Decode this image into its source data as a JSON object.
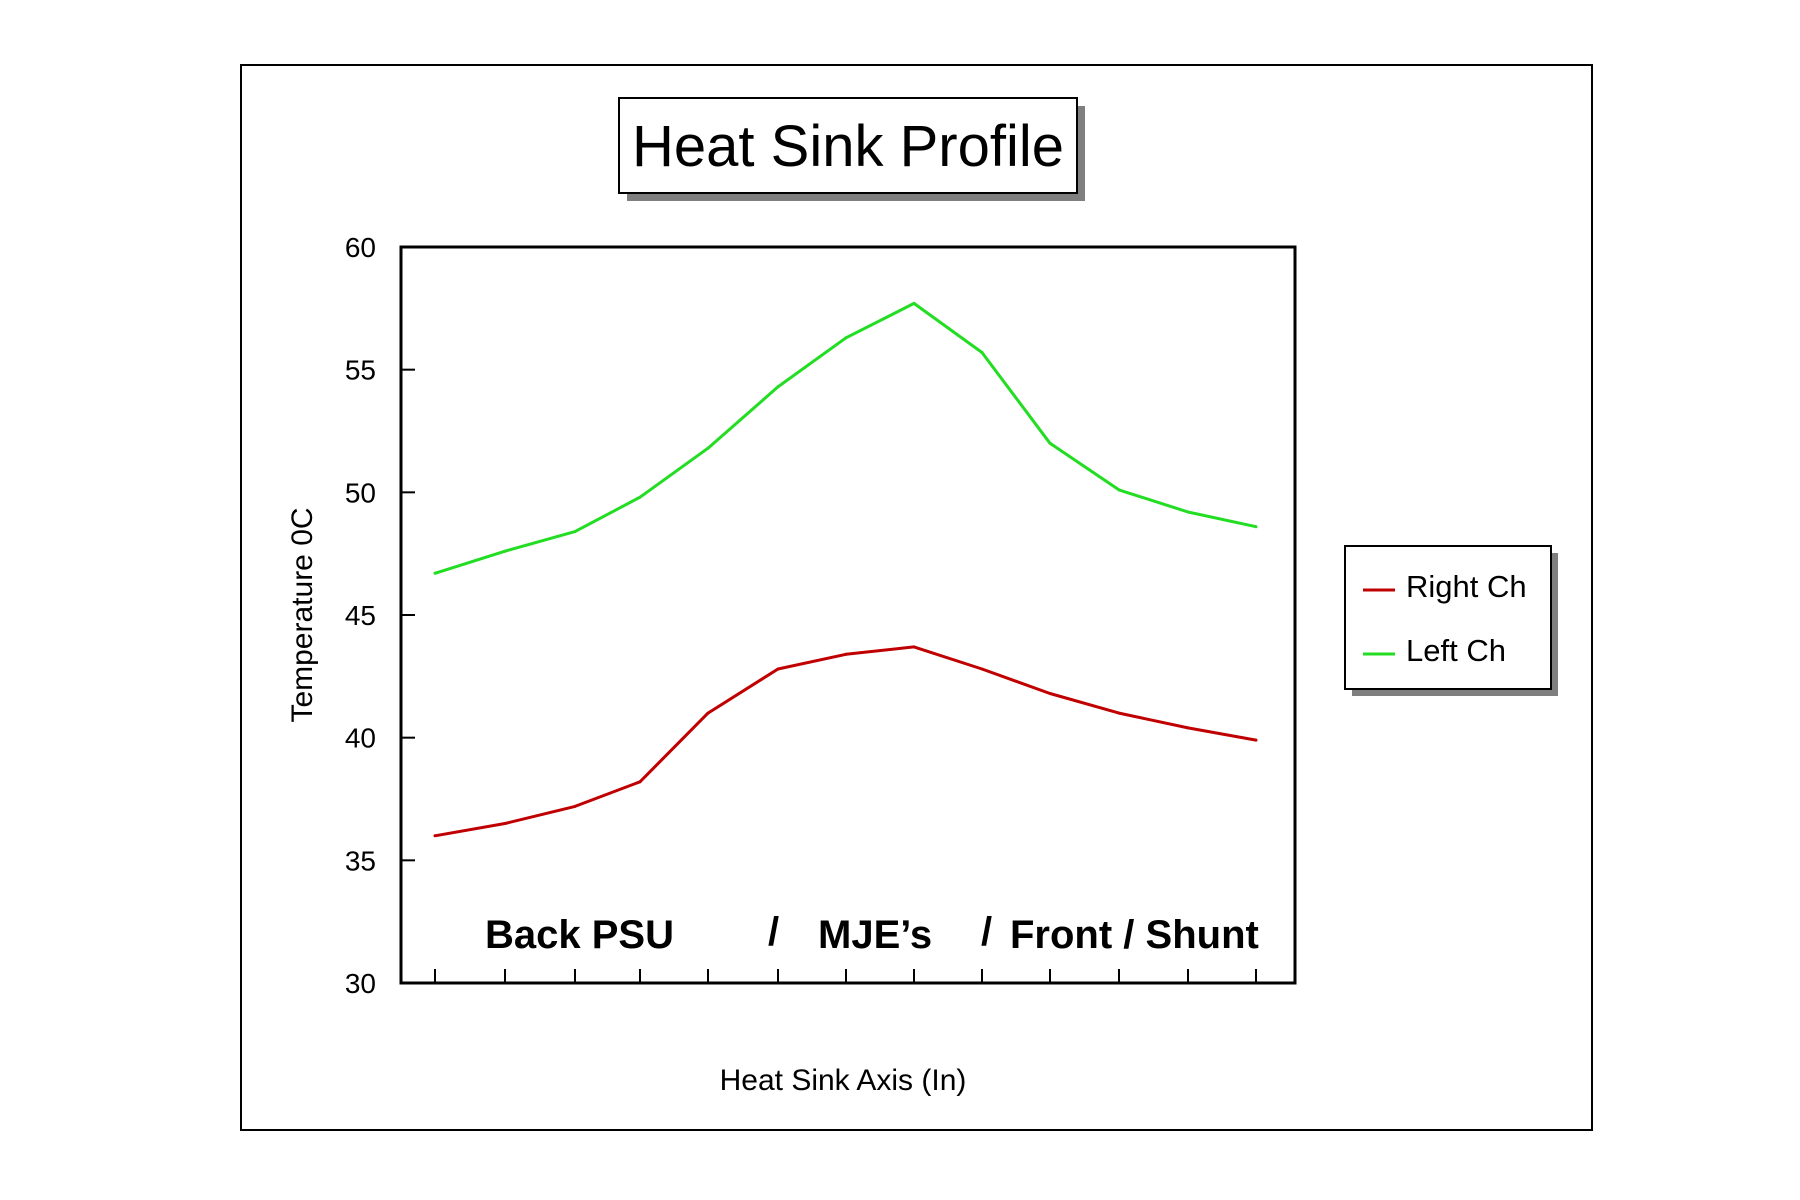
{
  "chart_data": {
    "type": "line",
    "title": "Heat Sink Profile",
    "xlabel": "Heat Sink Axis (In)",
    "ylabel": "Temperature 0C",
    "ylim": [
      30,
      60
    ],
    "yticks": [
      "30",
      "35",
      "40",
      "45",
      "50",
      "55",
      "60"
    ],
    "x": [
      1,
      2,
      3,
      4,
      5,
      6,
      7,
      8,
      9,
      10,
      11,
      12,
      13
    ],
    "series": [
      {
        "name": "Right Ch",
        "color": "#c00000",
        "values": [
          36.0,
          36.5,
          37.2,
          38.2,
          41.0,
          42.8,
          43.4,
          43.7,
          42.8,
          41.8,
          41.0,
          40.4,
          39.9
        ]
      },
      {
        "name": "Left Ch",
        "color": "#22dd22",
        "values": [
          46.7,
          47.6,
          48.4,
          49.8,
          51.8,
          54.3,
          56.3,
          57.7,
          55.7,
          52.0,
          50.1,
          49.2,
          48.6
        ]
      }
    ],
    "annotation": {
      "back": "Back PSU",
      "sep1": "/",
      "mje": "MJE’s",
      "sep2": "/",
      "front": "Front / Shunt"
    },
    "legend_position": "right",
    "grid": false
  }
}
